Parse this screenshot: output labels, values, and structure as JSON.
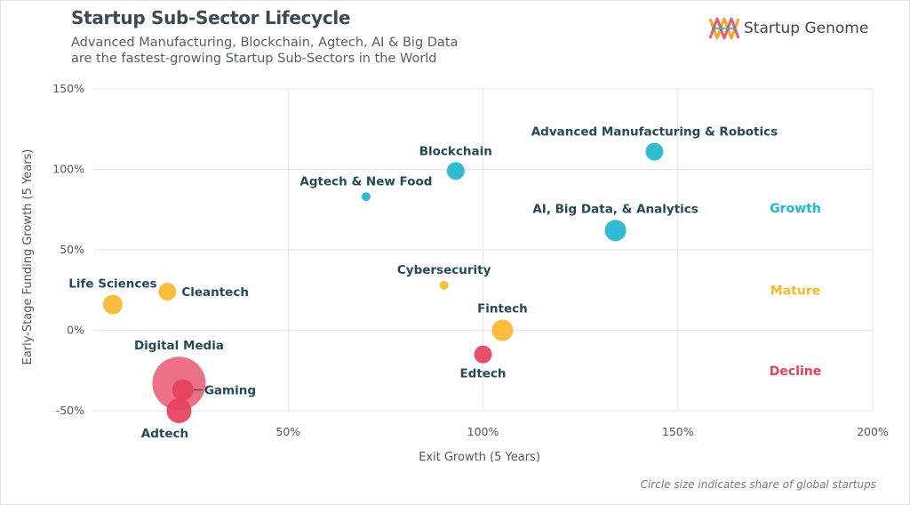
{
  "header": {
    "title": "Startup Sub-Sector Lifecycle",
    "subtitle_line1": "Advanced Manufacturing, Blockchain, Agtech, AI & Big Data",
    "subtitle_line2": "are the fastest-growing Startup Sub-Sectors in the World"
  },
  "logo": {
    "text": "Startup Genome",
    "icon": "startup-genome-logo-icon"
  },
  "footnote": "Circle size indicates share of global startups",
  "colors": {
    "growth": "#1fb6cf",
    "mature": "#fbb82b",
    "decline": "#e5405e",
    "label": "#234a55",
    "grid": "#e4e4e4"
  },
  "chart_data": {
    "type": "scatter",
    "xlabel": "Exit Growth (5 Years)",
    "ylabel": "Early-Stage Funding Growth (5 Years)",
    "xlim": [
      0,
      200
    ],
    "ylim": [
      -50,
      150
    ],
    "x_ticks": [
      {
        "value": 50,
        "label": "50%"
      },
      {
        "value": 100,
        "label": "100%"
      },
      {
        "value": 150,
        "label": "150%"
      },
      {
        "value": 200,
        "label": "200%"
      }
    ],
    "y_ticks": [
      {
        "value": -50,
        "label": "-50%"
      },
      {
        "value": 0,
        "label": "0%"
      },
      {
        "value": 50,
        "label": "50%"
      },
      {
        "value": 100,
        "label": "100%"
      },
      {
        "value": 150,
        "label": "150%"
      }
    ],
    "grid": true,
    "zone_labels": [
      {
        "name": "Growth",
        "color": "#1fb6cf",
        "y": 76
      },
      {
        "name": "Mature",
        "color": "#fbb82b",
        "y": 25
      },
      {
        "name": "Decline",
        "color": "#e5405e",
        "y": -25
      }
    ],
    "points": [
      {
        "name": "Advanced Manufacturing & Robotics",
        "x": 144,
        "y": 111,
        "size": 10,
        "category": "Growth",
        "label_pos": "above"
      },
      {
        "name": "Blockchain",
        "x": 93,
        "y": 99,
        "size": 10,
        "category": "Growth",
        "label_pos": "above"
      },
      {
        "name": "Agtech & New Food",
        "x": 70,
        "y": 83,
        "size": 5,
        "category": "Growth",
        "label_pos": "above"
      },
      {
        "name": "AI, Big Data, & Analytics",
        "x": 134,
        "y": 62,
        "size": 12,
        "category": "Growth",
        "label_pos": "above"
      },
      {
        "name": "Cybersecurity",
        "x": 90,
        "y": 28,
        "size": 5,
        "category": "Mature",
        "label_pos": "above"
      },
      {
        "name": "Cleantech",
        "x": 19,
        "y": 24,
        "size": 10,
        "category": "Mature",
        "label_pos": "right"
      },
      {
        "name": "Life Sciences",
        "x": 5,
        "y": 16,
        "size": 11,
        "category": "Mature",
        "label_pos": "above"
      },
      {
        "name": "Fintech",
        "x": 105,
        "y": 0,
        "size": 12,
        "category": "Mature",
        "label_pos": "above"
      },
      {
        "name": "Edtech",
        "x": 100,
        "y": -15,
        "size": 10,
        "category": "Decline",
        "label_pos": "below"
      },
      {
        "name": "Digital Media",
        "x": 22,
        "y": -33,
        "size": 30,
        "category": "Decline",
        "label_pos": "above"
      },
      {
        "name": "Gaming",
        "x": 23,
        "y": -37,
        "size": 12,
        "category": "Decline",
        "label_pos": "right"
      },
      {
        "name": "Adtech",
        "x": 22,
        "y": -50,
        "size": 14,
        "category": "Decline",
        "label_pos": "below"
      }
    ]
  }
}
